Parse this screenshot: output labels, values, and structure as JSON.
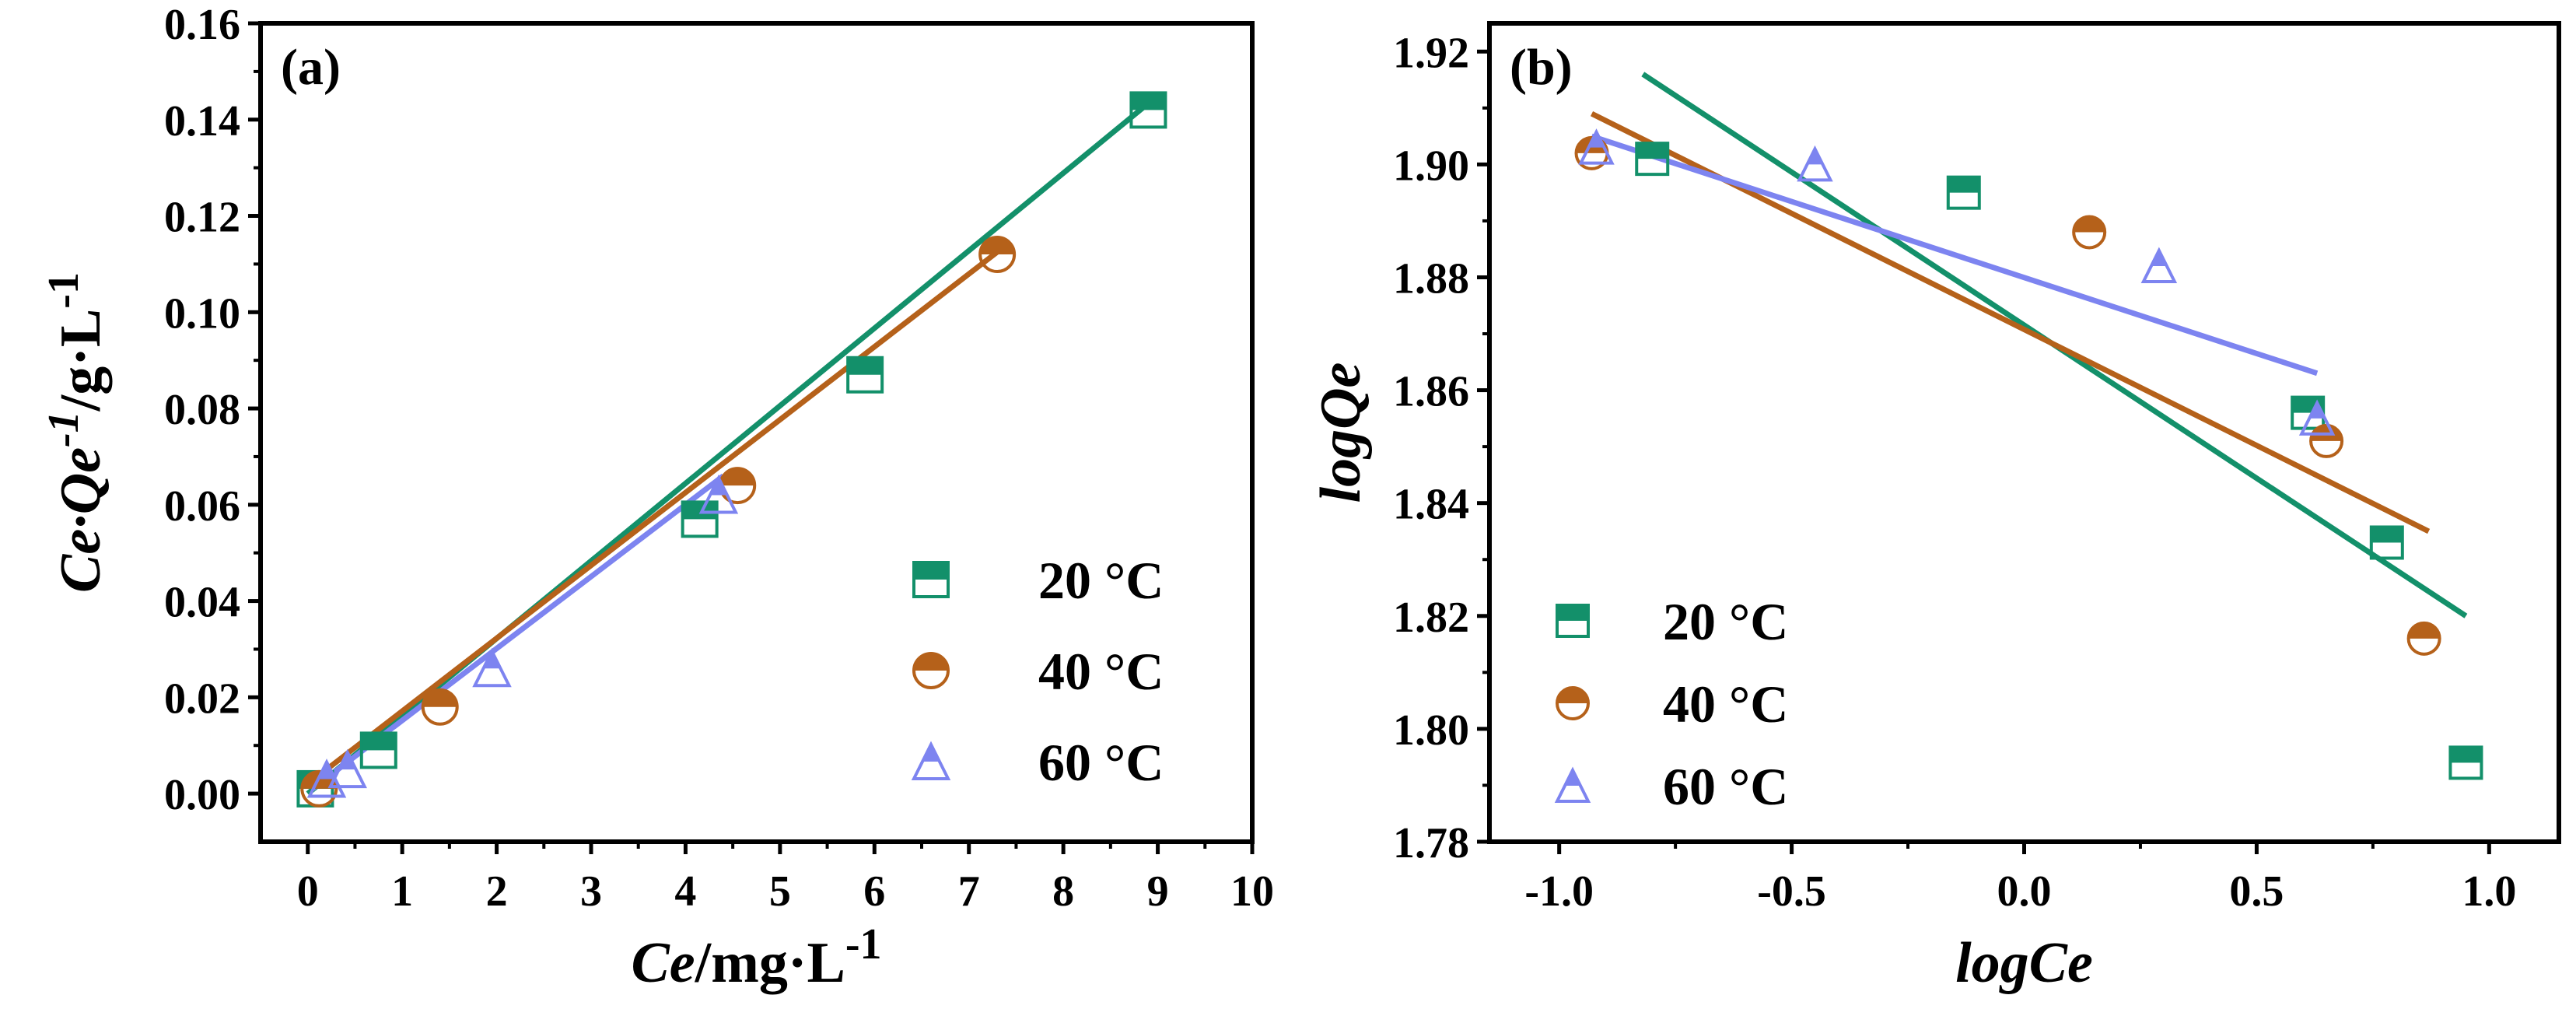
{
  "colors": {
    "s20": "#13906A",
    "s40": "#B5611A",
    "s60": "#7D84F0"
  },
  "chart_data": [
    {
      "type": "scatter",
      "panel_label": "(a)",
      "xlabel": {
        "italic": "Ce",
        "text": "/mg·L",
        "sup": "-1"
      },
      "ylabel": {
        "italic": "Ce·Qe",
        "sup1": "-1",
        "text": "/g·L",
        "sup2": "-1"
      },
      "xlim": [
        -0.5,
        10
      ],
      "ylim": [
        -0.01,
        0.16
      ],
      "xticks": [
        0,
        1,
        2,
        3,
        4,
        5,
        6,
        7,
        8,
        9,
        10
      ],
      "yticks": [
        0.0,
        0.02,
        0.04,
        0.06,
        0.08,
        0.1,
        0.12,
        0.14,
        0.16
      ],
      "xtick_labels": [
        "0",
        "1",
        "2",
        "3",
        "4",
        "5",
        "6",
        "7",
        "8",
        "9",
        "10"
      ],
      "ytick_labels": [
        "0.00",
        "0.02",
        "0.04",
        "0.06",
        "0.08",
        "0.10",
        "0.12",
        "0.14",
        "0.16"
      ],
      "legend_position": "bottom-right",
      "series": [
        {
          "name": "20 °C",
          "marker": "square",
          "color": "#13906A",
          "points": [
            [
              0.08,
              0.001
            ],
            [
              0.75,
              0.009
            ],
            [
              4.15,
              0.057
            ],
            [
              5.9,
              0.087
            ],
            [
              8.9,
              0.142
            ]
          ],
          "fit": [
            [
              0,
              0.0
            ],
            [
              9.0,
              0.145
            ]
          ]
        },
        {
          "name": "40 °C",
          "marker": "circle",
          "color": "#B5611A",
          "points": [
            [
              0.12,
              0.001
            ],
            [
              1.4,
              0.018
            ],
            [
              4.55,
              0.064
            ],
            [
              7.3,
              0.112
            ]
          ],
          "fit": [
            [
              0,
              0.002
            ],
            [
              7.4,
              0.114
            ]
          ]
        },
        {
          "name": "60 °C",
          "marker": "triangle",
          "color": "#7D84F0",
          "points": [
            [
              0.2,
              0.003
            ],
            [
              0.42,
              0.005
            ],
            [
              1.95,
              0.026
            ],
            [
              4.35,
              0.062
            ]
          ],
          "fit": [
            [
              0.05,
              0.001
            ],
            [
              4.4,
              0.066
            ]
          ]
        }
      ]
    },
    {
      "type": "scatter",
      "panel_label": "(b)",
      "xlabel": {
        "italic": "logCe"
      },
      "ylabel": {
        "italic": "logQe"
      },
      "xlim": [
        -1.15,
        1.15
      ],
      "ylim": [
        1.78,
        1.925
      ],
      "xticks": [
        -1.0,
        -0.5,
        0.0,
        0.5,
        1.0
      ],
      "yticks": [
        1.78,
        1.8,
        1.82,
        1.84,
        1.86,
        1.88,
        1.9,
        1.92
      ],
      "xtick_labels": [
        "-1.0",
        "-0.5",
        "0.0",
        "0.5",
        "1.0"
      ],
      "ytick_labels": [
        "1.78",
        "1.80",
        "1.82",
        "1.84",
        "1.86",
        "1.88",
        "1.90",
        "1.92"
      ],
      "legend_position": "bottom-left",
      "series": [
        {
          "name": "20 °C",
          "marker": "square",
          "color": "#13906A",
          "points": [
            [
              -0.8,
              1.901
            ],
            [
              -0.13,
              1.895
            ],
            [
              0.61,
              1.856
            ],
            [
              0.78,
              1.833
            ],
            [
              0.95,
              1.794
            ]
          ],
          "fit": [
            [
              -0.82,
              1.916
            ],
            [
              0.95,
              1.82
            ]
          ]
        },
        {
          "name": "40 °C",
          "marker": "circle",
          "color": "#B5611A",
          "points": [
            [
              -0.93,
              1.902
            ],
            [
              0.14,
              1.888
            ],
            [
              0.65,
              1.851
            ],
            [
              0.86,
              1.816
            ]
          ],
          "fit": [
            [
              -0.93,
              1.909
            ],
            [
              0.87,
              1.835
            ]
          ]
        },
        {
          "name": "60 °C",
          "marker": "triangle",
          "color": "#7D84F0",
          "points": [
            [
              -0.92,
              1.903
            ],
            [
              -0.45,
              1.9
            ],
            [
              0.29,
              1.882
            ],
            [
              0.63,
              1.855
            ]
          ],
          "fit": [
            [
              -0.93,
              1.905
            ],
            [
              0.63,
              1.863
            ]
          ]
        }
      ]
    }
  ]
}
